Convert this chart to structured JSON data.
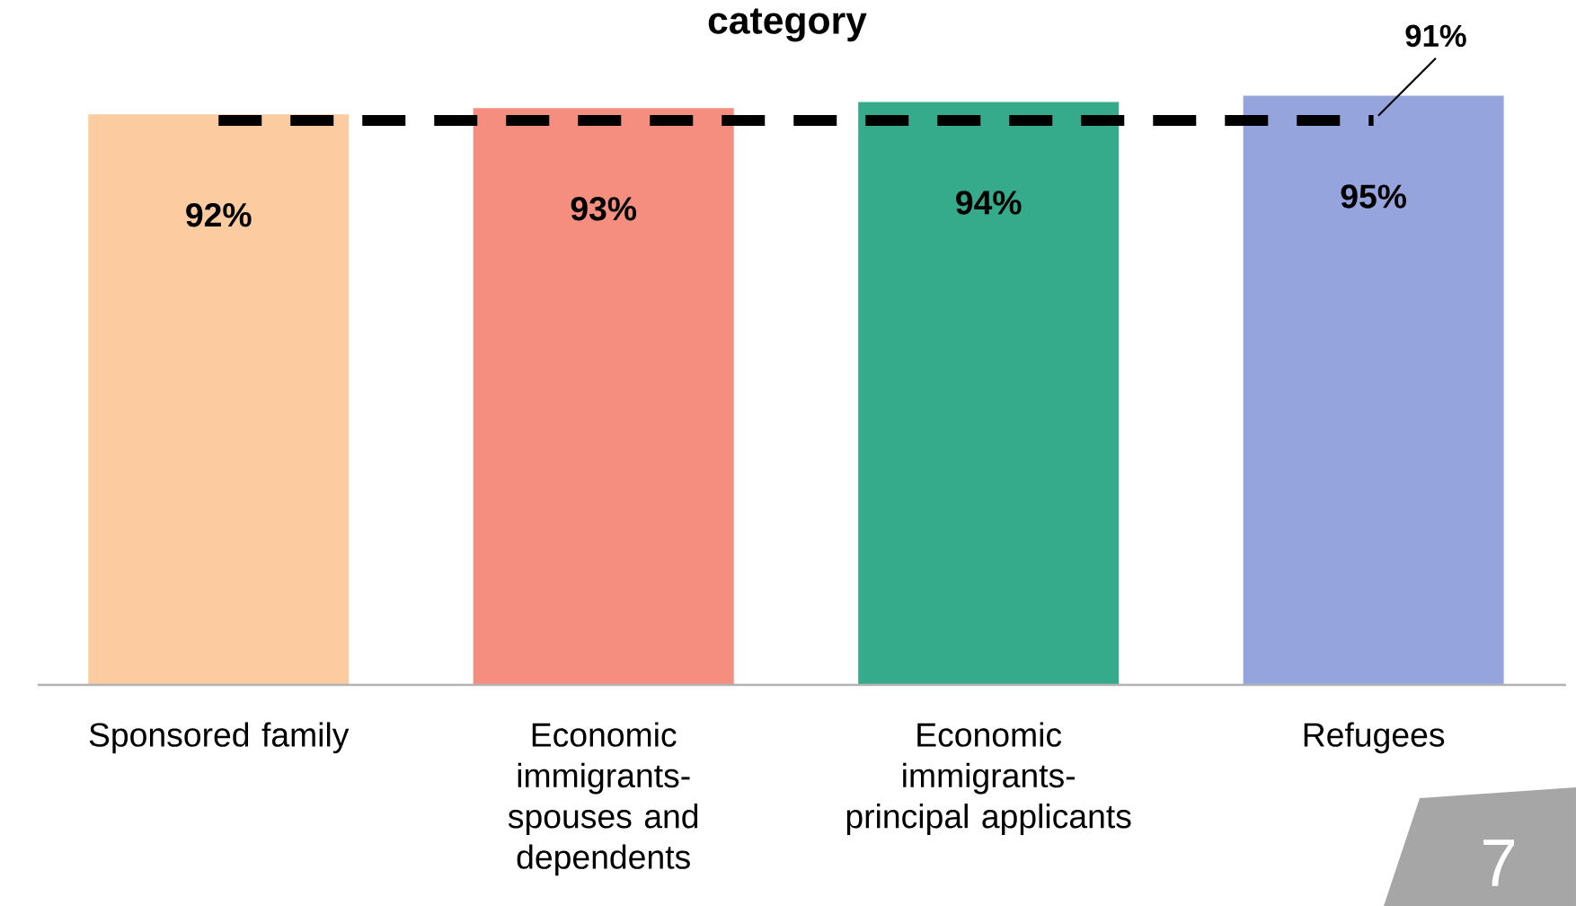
{
  "chart_data": {
    "type": "bar",
    "title": "category",
    "categories": [
      "Sponsored family",
      "Economic immigrants-spouses and dependents",
      "Economic immigrants-principal applicants",
      "Refugees"
    ],
    "values": [
      92,
      93,
      94,
      95
    ],
    "colors": [
      "#fdcba0",
      "#f58e7e",
      "#36ab8c",
      "#96a4de"
    ],
    "value_labels": [
      "92%",
      "93%",
      "94%",
      "95%"
    ],
    "ref_lines": [
      {
        "axis": "y",
        "value": 91,
        "label": "91%",
        "color": "#000000",
        "line_style": "dashed"
      }
    ],
    "annotations": [
      "7"
    ]
  }
}
